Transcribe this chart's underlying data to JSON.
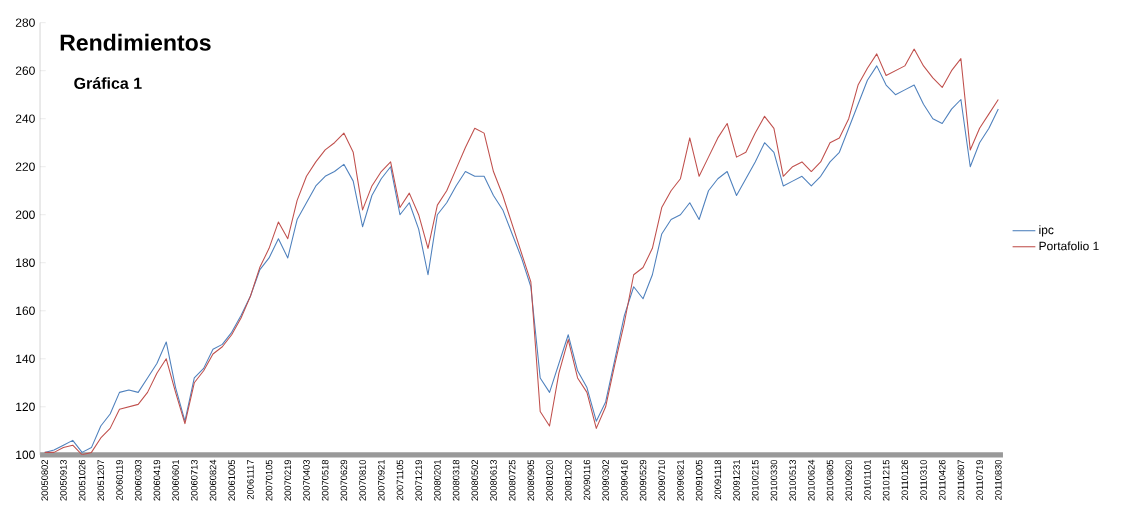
{
  "chart_data": {
    "type": "line",
    "title": "Rendimientos",
    "subtitle": "Gráfica 1",
    "categories": [
      "20050802",
      null,
      "20050913",
      null,
      "20051026",
      null,
      "20051207",
      null,
      "20060119",
      null,
      "20060303",
      null,
      "20060419",
      null,
      "20060601",
      null,
      "20060713",
      null,
      "20060824",
      null,
      "20061005",
      null,
      "20061117",
      null,
      "20070105",
      null,
      "20070219",
      null,
      "20070403",
      null,
      "20070518",
      null,
      "20070629",
      null,
      "20070810",
      null,
      "20070921",
      null,
      "20071105",
      null,
      "20071219",
      null,
      "20080201",
      null,
      "20080318",
      null,
      "20080502",
      null,
      "20080613",
      null,
      "20080725",
      null,
      "20080905",
      null,
      "20081020",
      null,
      "20081202",
      null,
      "20090116",
      null,
      "20090302",
      null,
      "20090416",
      null,
      "20090529",
      null,
      "20090710",
      null,
      "20090821",
      null,
      "20091005",
      null,
      "20091118",
      null,
      "20091231",
      null,
      "20100215",
      null,
      "20100330",
      null,
      "20100513",
      null,
      "20100624",
      null,
      "20100805",
      null,
      "20100920",
      null,
      "20101101",
      null,
      "20101215",
      null,
      "20110126",
      null,
      "20110310",
      null,
      "20110426",
      null,
      "20110607",
      null,
      "20110719",
      null,
      "20110830"
    ],
    "series": [
      {
        "name": "ipc",
        "color": "#4f81bd",
        "values": [
          101,
          102,
          104,
          106,
          101,
          103,
          112,
          117,
          126,
          127,
          126,
          132,
          138,
          147,
          128,
          114,
          132,
          136,
          144,
          146,
          151,
          158,
          166,
          177,
          182,
          190,
          182,
          198,
          205,
          212,
          216,
          218,
          221,
          214,
          195,
          208,
          215,
          220,
          200,
          205,
          194,
          175,
          200,
          205,
          212,
          218,
          216,
          216,
          208,
          202,
          192,
          182,
          170,
          132,
          126,
          138,
          150,
          135,
          128,
          114,
          122,
          140,
          158,
          170,
          165,
          175,
          192,
          198,
          200,
          205,
          198,
          210,
          215,
          218,
          208,
          215,
          222,
          230,
          226,
          212,
          214,
          216,
          212,
          216,
          222,
          226,
          236,
          246,
          256,
          262,
          254,
          250,
          252,
          254,
          246,
          240,
          238,
          244,
          248,
          220,
          230,
          236,
          244
        ]
      },
      {
        "name": "Portafolio 1",
        "color": "#c0504d",
        "values": [
          101,
          101,
          103,
          104,
          100,
          101,
          107,
          111,
          119,
          120,
          121,
          126,
          134,
          140,
          126,
          113,
          130,
          135,
          142,
          145,
          150,
          157,
          166,
          178,
          186,
          197,
          190,
          206,
          216,
          222,
          227,
          230,
          234,
          226,
          202,
          212,
          218,
          222,
          203,
          209,
          200,
          186,
          204,
          210,
          219,
          228,
          236,
          234,
          218,
          208,
          196,
          184,
          172,
          118,
          112,
          134,
          148,
          132,
          126,
          111,
          120,
          138,
          155,
          175,
          178,
          186,
          203,
          210,
          215,
          232,
          216,
          224,
          232,
          238,
          224,
          226,
          234,
          241,
          236,
          216,
          220,
          222,
          218,
          222,
          230,
          232,
          240,
          254,
          261,
          267,
          258,
          260,
          262,
          269,
          262,
          257,
          253,
          260,
          265,
          227,
          236,
          242,
          248
        ]
      }
    ],
    "ylim": [
      100,
      280
    ],
    "yticks": [
      100,
      120,
      140,
      160,
      180,
      200,
      220,
      240,
      260,
      280
    ],
    "grid": false,
    "legend": "right",
    "marker": "none",
    "line_style": "solid"
  }
}
